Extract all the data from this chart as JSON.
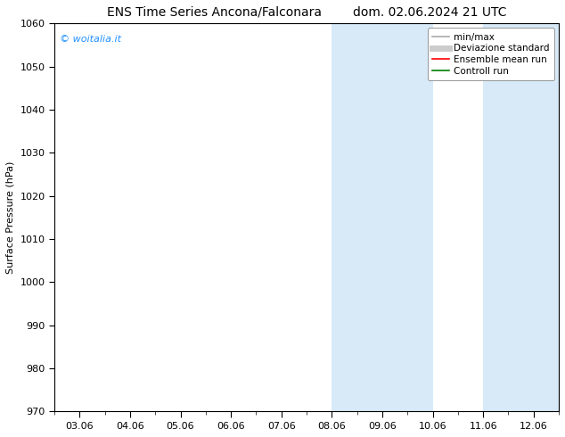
{
  "title_left": "ENS Time Series Ancona/Falconara",
  "title_right": "dom. 02.06.2024 21 UTC",
  "ylabel": "Surface Pressure (hPa)",
  "ylim": [
    970,
    1060
  ],
  "yticks": [
    970,
    980,
    990,
    1000,
    1010,
    1020,
    1030,
    1040,
    1050,
    1060
  ],
  "xtick_labels": [
    "03.06",
    "04.06",
    "05.06",
    "06.06",
    "07.06",
    "08.06",
    "09.06",
    "10.06",
    "11.06",
    "12.06"
  ],
  "shaded_color": "#d8eaf8",
  "watermark_text": "© woitalia.it",
  "watermark_color": "#1e90ff",
  "legend_items": [
    {
      "label": "min/max",
      "color": "#aaaaaa",
      "lw": 1.2
    },
    {
      "label": "Deviazione standard",
      "color": "#cccccc",
      "lw": 5.0
    },
    {
      "label": "Ensemble mean run",
      "color": "#ff0000",
      "lw": 1.2
    },
    {
      "label": "Controll run",
      "color": "#008000",
      "lw": 1.2
    }
  ],
  "background_color": "#ffffff",
  "title_fontsize": 10,
  "tick_fontsize": 8,
  "ylabel_fontsize": 8,
  "legend_fontsize": 7.5,
  "watermark_fontsize": 8
}
